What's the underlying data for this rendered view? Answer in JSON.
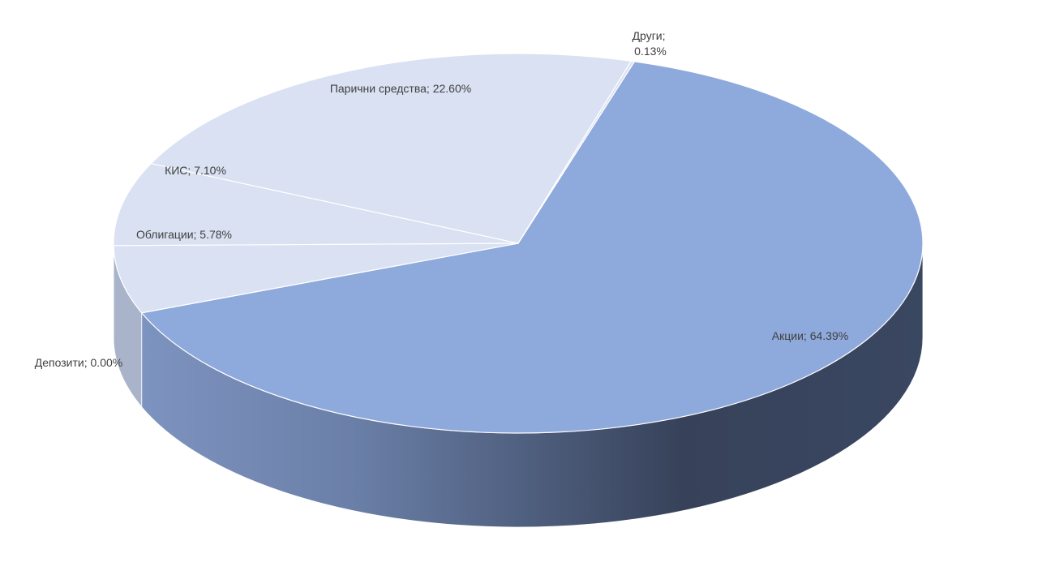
{
  "chart_data": {
    "type": "pie3d",
    "categories": [
      "Акции",
      "Депозити",
      "Облигации",
      "КИС",
      "Парични средства",
      "Други"
    ],
    "values": [
      64.39,
      0.0,
      5.78,
      7.1,
      22.6,
      0.13
    ],
    "value_labels": [
      "64.39%",
      "0.00%",
      "5.78%",
      "7.10%",
      "22.60%",
      "0.13%"
    ],
    "label_separator": "; ",
    "colors": [
      "#8EA9DB",
      "#D9E1F2",
      "#D9E1F2",
      "#D9E1F2",
      "#D9E1F2",
      "#D9E1F2"
    ]
  }
}
